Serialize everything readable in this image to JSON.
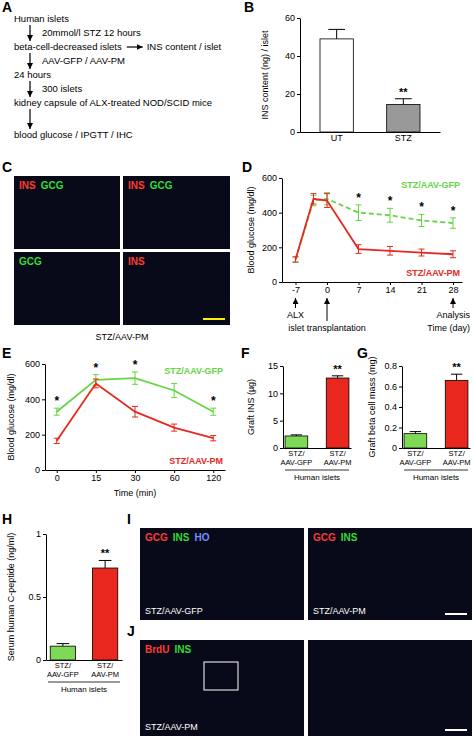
{
  "diagram": {
    "panel": "A",
    "nodes": [
      "Human islets",
      "beta-cell-decreased islets",
      "24 hours",
      "kidney capsule of ALX-treated NOD/SCID mice",
      "blood glucose / IPGTT / IHC"
    ],
    "edges": [
      {
        "from": 0,
        "to": 1,
        "label": "20mmol/l STZ 12 hours"
      },
      {
        "from": 1,
        "to": 2,
        "label": "AAV-GFP / AAV-PM"
      },
      {
        "from": 2,
        "to": 3,
        "label": "300 islets"
      },
      {
        "from": 3,
        "to": 4
      }
    ],
    "side": {
      "from": 1,
      "text": "INS content / islet"
    }
  },
  "chart_data": [
    {
      "panel": "B",
      "type": "bar",
      "y_label": "INS content (ng) / islet",
      "categories": [
        "UT",
        "STZ"
      ],
      "values": [
        49,
        14.5
      ],
      "errors": [
        5,
        3
      ],
      "colors": [
        "#ffffff",
        "#999999"
      ],
      "ylim": [
        0,
        60
      ],
      "yticks": [
        0,
        20,
        40,
        60
      ],
      "annotations": [
        {
          "text": "**",
          "x": "STZ"
        }
      ]
    },
    {
      "panel": "D",
      "type": "line",
      "y_label": "Blood glucose (mg/dl)",
      "x_label": "Time (day)",
      "x": [
        -7,
        -3,
        0,
        7,
        14,
        21,
        28
      ],
      "xlim": [
        -10,
        30
      ],
      "xticks": [
        -7,
        0,
        7,
        14,
        21,
        28
      ],
      "ylim": [
        0,
        600
      ],
      "yticks": [
        0,
        200,
        400,
        600
      ],
      "legend": "right",
      "series": [
        {
          "name": "STZ/AAV-GFP",
          "color": "#66d444",
          "line_style": "dashed",
          "values": [
            130,
            470,
            480,
            400,
            385,
            355,
            340
          ],
          "errors": [
            15,
            30,
            35,
            45,
            40,
            35,
            30
          ]
        },
        {
          "name": "STZ/AAV-PM",
          "color": "#e8281e",
          "line_style": "solid",
          "values": [
            130,
            480,
            470,
            190,
            180,
            170,
            160
          ],
          "errors": [
            15,
            30,
            40,
            25,
            25,
            20,
            20
          ]
        }
      ],
      "annotations": [
        {
          "text": "*",
          "x": 7
        },
        {
          "text": "*",
          "x": 14
        },
        {
          "text": "*",
          "x": 21
        },
        {
          "text": "*",
          "x": 28
        }
      ],
      "events": [
        {
          "text": "ALX",
          "x": -7
        },
        {
          "text": "islet transplantation",
          "x": 0
        },
        {
          "text": "Analysis",
          "x": 28
        }
      ]
    },
    {
      "panel": "E",
      "type": "line",
      "y_label": "Blood glucose (mg/dl)",
      "x_label": "Time (min)",
      "categories": [
        "0",
        "15",
        "30",
        "60",
        "120"
      ],
      "ylim": [
        0,
        600
      ],
      "yticks": [
        0,
        200,
        400,
        600
      ],
      "legend": "right",
      "series": [
        {
          "name": "STZ/AAV-GFP",
          "color": "#66d444",
          "line_style": "solid",
          "values": [
            330,
            510,
            520,
            450,
            330
          ],
          "errors": [
            20,
            30,
            35,
            40,
            20
          ]
        },
        {
          "name": "STZ/AAV-PM",
          "color": "#e8281e",
          "line_style": "solid",
          "values": [
            165,
            490,
            330,
            240,
            180
          ],
          "errors": [
            15,
            25,
            30,
            20,
            15
          ]
        }
      ],
      "annotations": [
        {
          "text": "*",
          "x": "0"
        },
        {
          "text": "*",
          "x": "15"
        },
        {
          "text": "*",
          "x": "30"
        },
        {
          "text": "*",
          "x": "120"
        }
      ]
    },
    {
      "panel": "F",
      "type": "bar",
      "y_label": "Graft INS (µg)",
      "group_label": "Human islets",
      "categories": [
        "STZ/AAV-GFP",
        "STZ/AAV-PM"
      ],
      "values": [
        2.2,
        12.8
      ],
      "errors": [
        0.2,
        0.4
      ],
      "colors": [
        "#7ed957",
        "#e8281e"
      ],
      "ylim": [
        0,
        15
      ],
      "yticks": [
        0,
        5,
        10,
        15
      ],
      "annotations": [
        {
          "text": "**",
          "x": "STZ/AAV-PM"
        }
      ]
    },
    {
      "panel": "G",
      "type": "bar",
      "y_label": "Graft beta cell mass (mg)",
      "group_label": "Human islets",
      "categories": [
        "STZ/AAV-GFP",
        "STZ/AAV-PM"
      ],
      "values": [
        0.14,
        0.66
      ],
      "errors": [
        0.02,
        0.06
      ],
      "colors": [
        "#7ed957",
        "#e8281e"
      ],
      "ylim": [
        0,
        0.8
      ],
      "yticks": [
        0,
        0.2,
        0.4,
        0.6,
        0.8
      ],
      "annotations": [
        {
          "text": "**",
          "x": "STZ/AAV-PM"
        }
      ]
    },
    {
      "panel": "H",
      "type": "bar",
      "y_label": "Serum human C-peptide (ng/ml)",
      "group_label": "Human islets",
      "categories": [
        "STZ/AAV-GFP",
        "STZ/AAV-PM"
      ],
      "values": [
        0.11,
        0.73
      ],
      "errors": [
        0.02,
        0.06
      ],
      "colors": [
        "#7ed957",
        "#e8281e"
      ],
      "ylim": [
        0,
        1
      ],
      "yticks": [
        0,
        0.5,
        1
      ],
      "annotations": [
        {
          "text": "**",
          "x": "STZ/AAV-PM"
        }
      ]
    }
  ],
  "images": [
    {
      "panel": "C",
      "caption": "STZ/AAV-PM",
      "tiles": [
        {
          "labels": [
            {
              "text": "INS",
              "color": "#ff3b30"
            },
            {
              "text": "GCG",
              "color": "#33dd33"
            }
          ]
        },
        {
          "labels": [
            {
              "text": "INS",
              "color": "#ff3b30"
            },
            {
              "text": "GCG",
              "color": "#33dd33"
            }
          ]
        },
        {
          "labels": [
            {
              "text": "GCG",
              "color": "#33dd33"
            }
          ]
        },
        {
          "labels": [
            {
              "text": "INS",
              "color": "#ff3b30"
            }
          ]
        }
      ]
    },
    {
      "panel": "I",
      "tiles": [
        {
          "labels": [
            {
              "text": "GCG",
              "color": "#ff3b30"
            },
            {
              "text": "INS",
              "color": "#33dd33"
            },
            {
              "text": "HO",
              "color": "#7090ff"
            }
          ],
          "caption": "STZ/AAV-GFP"
        },
        {
          "labels": [
            {
              "text": "GCG",
              "color": "#ff3b30"
            },
            {
              "text": "INS",
              "color": "#33dd33"
            }
          ],
          "caption": "STZ/AAV-PM"
        }
      ]
    },
    {
      "panel": "J",
      "tiles": [
        {
          "labels": [
            {
              "text": "BrdU",
              "color": "#ff3b30"
            },
            {
              "text": "INS",
              "color": "#33dd33"
            }
          ],
          "caption": "STZ/AAV-PM"
        },
        {
          "labels": []
        }
      ]
    }
  ]
}
